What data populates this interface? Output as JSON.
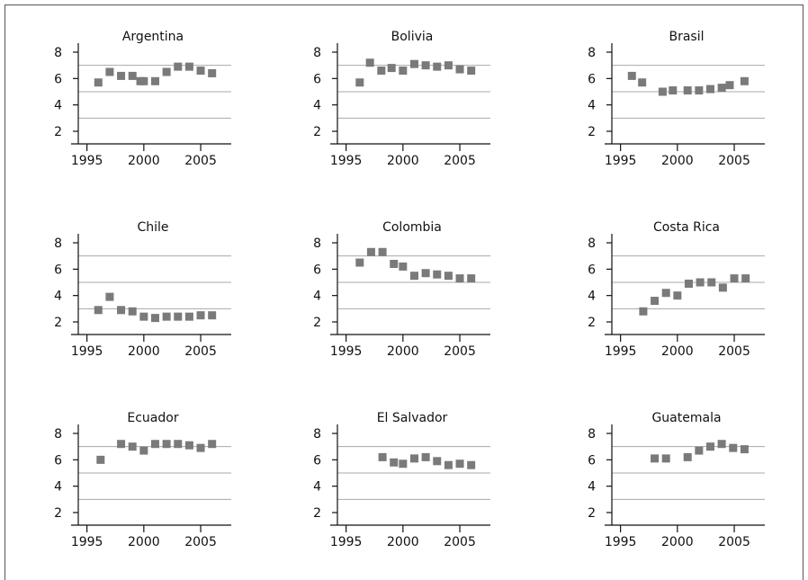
{
  "chart_data": [
    {
      "type": "scatter",
      "title": "Argentina",
      "ylim": [
        1.5,
        8.5
      ],
      "yticks": [
        2,
        4,
        6,
        8
      ],
      "xlim": [
        1994,
        2006.5
      ],
      "xticks": [
        1995,
        2000,
        2005
      ],
      "gridlines": [
        3,
        5,
        7
      ],
      "x": [
        1996,
        1997,
        1998,
        1999,
        1999.7,
        2000,
        2001,
        2002,
        2003,
        2004,
        2005,
        2006
      ],
      "y": [
        5.7,
        6.5,
        6.2,
        6.2,
        5.8,
        5.8,
        5.8,
        6.5,
        6.9,
        6.9,
        6.6,
        6.4
      ]
    },
    {
      "type": "scatter",
      "title": "Bolivia",
      "ylim": [
        1.5,
        8.5
      ],
      "yticks": [
        2,
        4,
        6,
        8
      ],
      "xlim": [
        1994,
        2006.5
      ],
      "xticks": [
        1995,
        2000,
        2005
      ],
      "gridlines": [
        3,
        5,
        7
      ],
      "x": [
        1996.2,
        1997.1,
        1998.1,
        1999,
        2000,
        2001,
        2002,
        2003,
        2004,
        2005,
        2006
      ],
      "y": [
        5.7,
        7.2,
        6.6,
        6.8,
        6.6,
        7.1,
        7.0,
        6.9,
        7.0,
        6.7,
        6.6
      ]
    },
    {
      "type": "scatter",
      "title": "Brasil",
      "ylim": [
        1.5,
        8.5
      ],
      "yticks": [
        2,
        4,
        6,
        8
      ],
      "xlim": [
        1994,
        2006.5
      ],
      "xticks": [
        1995,
        2000,
        2005
      ],
      "gridlines": [
        3,
        5,
        7
      ],
      "x": [
        1996,
        1996.9,
        1998.7,
        1999.6,
        2000.9,
        2001.9,
        2002.9,
        2003.9,
        2004.6,
        2005.9
      ],
      "y": [
        6.2,
        5.7,
        5.0,
        5.1,
        5.1,
        5.1,
        5.2,
        5.3,
        5.5,
        5.8
      ]
    },
    {
      "type": "scatter",
      "title": "Chile",
      "ylim": [
        1.5,
        8.5
      ],
      "yticks": [
        2,
        4,
        6,
        8
      ],
      "xlim": [
        1994,
        2006.5
      ],
      "xticks": [
        1995,
        2000,
        2005
      ],
      "gridlines": [
        3,
        5,
        7
      ],
      "x": [
        1996,
        1997,
        1998,
        1999,
        2000,
        2001,
        2002,
        2003,
        2004,
        2005,
        2006
      ],
      "y": [
        2.9,
        3.9,
        2.9,
        2.8,
        2.4,
        2.3,
        2.4,
        2.4,
        2.4,
        2.5,
        2.5
      ]
    },
    {
      "type": "scatter",
      "title": "Colombia",
      "ylim": [
        1.5,
        8.5
      ],
      "yticks": [
        2,
        4,
        6,
        8
      ],
      "xlim": [
        1994,
        2006.5
      ],
      "xticks": [
        1995,
        2000,
        2005
      ],
      "gridlines": [
        3,
        5,
        7
      ],
      "x": [
        1996.2,
        1997.2,
        1998.2,
        1999.2,
        2000,
        2001,
        2002,
        2003,
        2004,
        2005,
        2006
      ],
      "y": [
        6.5,
        7.3,
        7.3,
        6.4,
        6.2,
        5.5,
        5.7,
        5.6,
        5.5,
        5.3,
        5.3
      ]
    },
    {
      "type": "scatter",
      "title": "Costa Rica",
      "ylim": [
        1.5,
        8.5
      ],
      "yticks": [
        2,
        4,
        6,
        8
      ],
      "xlim": [
        1994,
        2006.5
      ],
      "xticks": [
        1995,
        2000,
        2005
      ],
      "gridlines": [
        3,
        5,
        7
      ],
      "x": [
        1997,
        1998,
        1999,
        2000,
        2001,
        2002,
        2003,
        2004,
        2005,
        2006
      ],
      "y": [
        2.8,
        3.6,
        4.2,
        4.0,
        4.9,
        5.0,
        5.0,
        4.6,
        5.3,
        5.3
      ]
    },
    {
      "type": "scatter",
      "title": "Ecuador",
      "ylim": [
        1.5,
        8.5
      ],
      "yticks": [
        2,
        4,
        6,
        8
      ],
      "xlim": [
        1994,
        2006.5
      ],
      "xticks": [
        1995,
        2000,
        2005
      ],
      "gridlines": [
        3,
        5,
        7
      ],
      "x": [
        1996.2,
        1998,
        1999,
        2000,
        2001,
        2002,
        2003,
        2004,
        2005,
        2006
      ],
      "y": [
        6.0,
        7.2,
        7.0,
        6.7,
        7.2,
        7.2,
        7.2,
        7.1,
        6.9,
        7.2
      ]
    },
    {
      "type": "scatter",
      "title": "El Salvador",
      "ylim": [
        1.5,
        8.5
      ],
      "yticks": [
        2,
        4,
        6,
        8
      ],
      "xlim": [
        1994,
        2006.5
      ],
      "xticks": [
        1995,
        2000,
        2005
      ],
      "gridlines": [
        3,
        5,
        7
      ],
      "x": [
        1998.2,
        1999.2,
        2000,
        2001,
        2002,
        2003,
        2004,
        2005,
        2006
      ],
      "y": [
        6.2,
        5.8,
        5.7,
        6.1,
        6.2,
        5.9,
        5.6,
        5.7,
        5.6
      ]
    },
    {
      "type": "scatter",
      "title": "Guatemala",
      "ylim": [
        1.5,
        8.5
      ],
      "yticks": [
        2,
        4,
        6,
        8
      ],
      "xlim": [
        1994,
        2006.5
      ],
      "xticks": [
        1995,
        2000,
        2005
      ],
      "gridlines": [
        3,
        5,
        7
      ],
      "x": [
        1998,
        1999,
        2000.9,
        2001.9,
        2002.9,
        2003.9,
        2004.9,
        2005.9
      ],
      "y": [
        6.1,
        6.1,
        6.2,
        6.7,
        7.0,
        7.2,
        6.9,
        6.8
      ]
    }
  ],
  "colors": {
    "marker": "#7a7a7a",
    "grid": "#a8a8a8",
    "axis": "#111111"
  }
}
